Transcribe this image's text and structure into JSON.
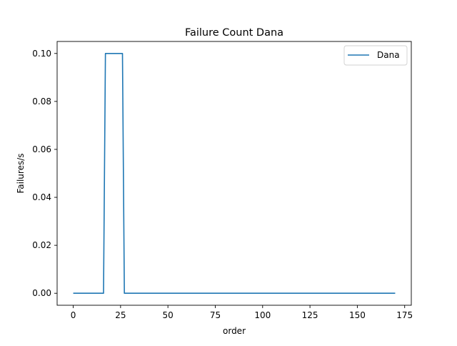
{
  "chart_data": {
    "type": "line",
    "title": "Failure Count Dana",
    "xlabel": "order",
    "ylabel": "Failures/s",
    "xlim": [
      -8.5,
      178.5
    ],
    "ylim": [
      -0.005,
      0.105
    ],
    "xticks": [
      0,
      25,
      50,
      75,
      100,
      125,
      150,
      175
    ],
    "yticks": [
      0.0,
      0.02,
      0.04,
      0.06,
      0.08,
      0.1
    ],
    "ytick_labels": [
      "0.00",
      "0.02",
      "0.04",
      "0.06",
      "0.08",
      "0.10"
    ],
    "grid": false,
    "legend_position": "top-right",
    "series": [
      {
        "name": "Dana",
        "color": "#1f77b4",
        "x": [
          0,
          16,
          17,
          26,
          27,
          170
        ],
        "y": [
          0,
          0,
          0.1,
          0.1,
          0,
          0
        ]
      }
    ]
  }
}
